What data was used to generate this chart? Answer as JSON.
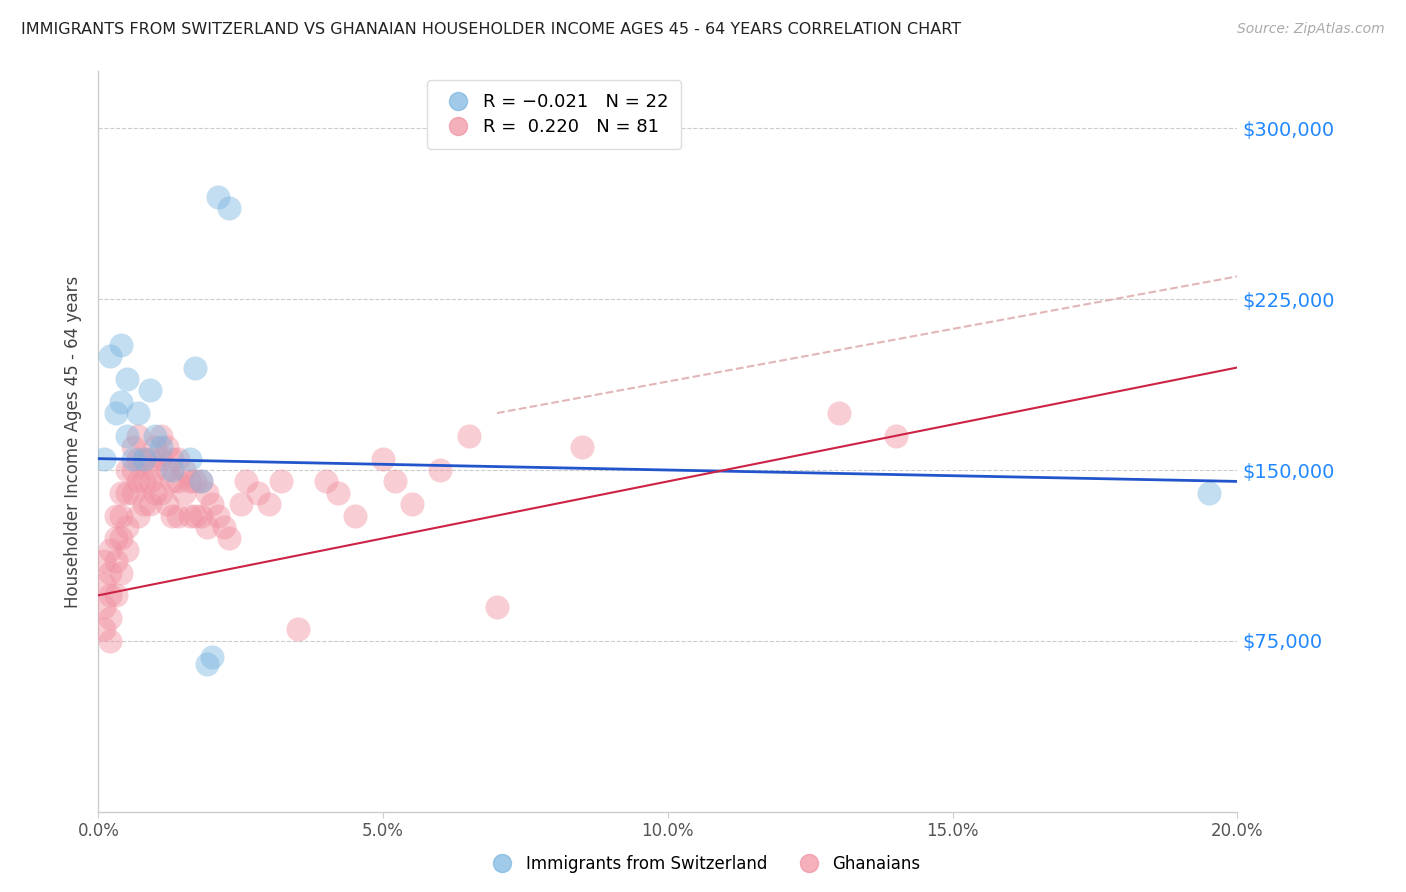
{
  "title": "IMMIGRANTS FROM SWITZERLAND VS GHANAIAN HOUSEHOLDER INCOME AGES 45 - 64 YEARS CORRELATION CHART",
  "source": "Source: ZipAtlas.com",
  "ylabel": "Householder Income Ages 45 - 64 years",
  "xmin": 0.0,
  "xmax": 0.2,
  "ymin": 0,
  "ymax": 325000,
  "yticks": [
    0,
    75000,
    150000,
    225000,
    300000
  ],
  "xticks": [
    0.0,
    0.05,
    0.1,
    0.15,
    0.2
  ],
  "xtick_labels": [
    "0.0%",
    "5.0%",
    "10.0%",
    "15.0%",
    "20.0%"
  ],
  "ytick_labels": [
    "",
    "$75,000",
    "$150,000",
    "$225,000",
    "$300,000"
  ],
  "swiss_color": "#7ab4e0",
  "ghana_color": "#f090a0",
  "swiss_line_color": "#2255cc",
  "ghana_line_color": "#cc2244",
  "dash_line_color": "#ddaaaa",
  "swiss_R": -0.021,
  "swiss_N": 22,
  "ghana_R": 0.22,
  "ghana_N": 81,
  "background_color": "#ffffff",
  "grid_color": "#cccccc",
  "right_label_color": "#2288ff",
  "swiss_line_y0": 155000,
  "swiss_line_y1": 145000,
  "ghana_line_y0": 95000,
  "ghana_line_y1": 195000,
  "dash_line_x0": 0.07,
  "dash_line_y0": 175000,
  "dash_line_x1": 0.2,
  "dash_line_y1": 235000,
  "swiss_x": [
    0.001,
    0.002,
    0.003,
    0.004,
    0.004,
    0.005,
    0.005,
    0.006,
    0.007,
    0.008,
    0.009,
    0.01,
    0.011,
    0.013,
    0.016,
    0.017,
    0.018,
    0.019,
    0.02,
    0.021,
    0.023,
    0.195
  ],
  "swiss_y": [
    155000,
    200000,
    175000,
    180000,
    205000,
    190000,
    165000,
    155000,
    175000,
    155000,
    185000,
    165000,
    160000,
    150000,
    155000,
    195000,
    145000,
    65000,
    68000,
    270000,
    265000,
    140000
  ],
  "ghana_x": [
    0.001,
    0.001,
    0.001,
    0.001,
    0.002,
    0.002,
    0.002,
    0.002,
    0.002,
    0.003,
    0.003,
    0.003,
    0.003,
    0.004,
    0.004,
    0.004,
    0.004,
    0.005,
    0.005,
    0.005,
    0.005,
    0.006,
    0.006,
    0.006,
    0.007,
    0.007,
    0.007,
    0.007,
    0.008,
    0.008,
    0.008,
    0.009,
    0.009,
    0.009,
    0.01,
    0.01,
    0.01,
    0.011,
    0.011,
    0.011,
    0.012,
    0.012,
    0.012,
    0.013,
    0.013,
    0.013,
    0.014,
    0.014,
    0.014,
    0.015,
    0.015,
    0.016,
    0.016,
    0.017,
    0.017,
    0.018,
    0.018,
    0.019,
    0.019,
    0.02,
    0.021,
    0.022,
    0.023,
    0.025,
    0.026,
    0.028,
    0.03,
    0.032,
    0.035,
    0.04,
    0.042,
    0.045,
    0.05,
    0.052,
    0.055,
    0.06,
    0.065,
    0.07,
    0.085,
    0.13,
    0.14
  ],
  "ghana_y": [
    100000,
    90000,
    80000,
    110000,
    115000,
    105000,
    95000,
    85000,
    75000,
    130000,
    120000,
    110000,
    95000,
    140000,
    130000,
    120000,
    105000,
    150000,
    140000,
    125000,
    115000,
    160000,
    150000,
    140000,
    165000,
    155000,
    145000,
    130000,
    155000,
    145000,
    135000,
    155000,
    145000,
    135000,
    160000,
    150000,
    140000,
    165000,
    155000,
    140000,
    160000,
    150000,
    135000,
    155000,
    145000,
    130000,
    155000,
    145000,
    130000,
    150000,
    140000,
    145000,
    130000,
    145000,
    130000,
    145000,
    130000,
    140000,
    125000,
    135000,
    130000,
    125000,
    120000,
    135000,
    145000,
    140000,
    135000,
    145000,
    80000,
    145000,
    140000,
    130000,
    155000,
    145000,
    135000,
    150000,
    165000,
    90000,
    160000,
    175000,
    165000
  ]
}
